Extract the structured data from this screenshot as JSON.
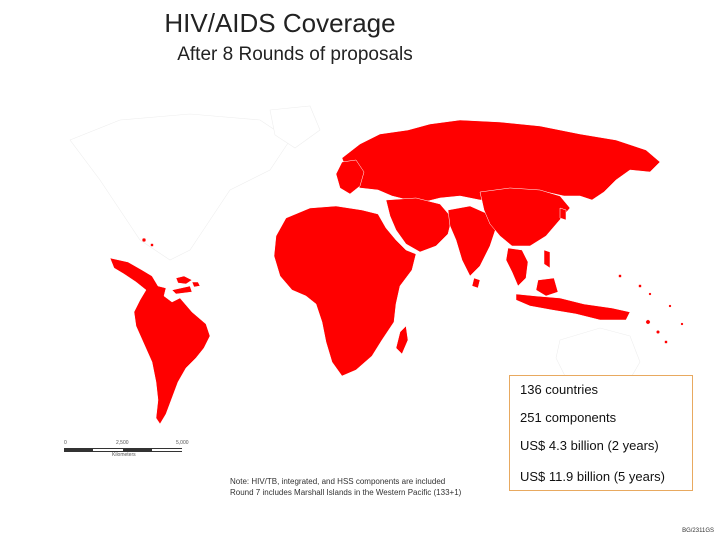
{
  "header": {
    "title": "HIV/AIDS Coverage",
    "subtitle": "After 8 Rounds of proposals"
  },
  "map": {
    "fill_color": "#ff0000",
    "border_color": "#ffffff",
    "background": "#ffffff",
    "funded_regions": [
      "Latin America and Caribbean",
      "Africa",
      "Eastern Europe and Russia",
      "Middle East and Central Asia",
      "South Asia",
      "East and Southeast Asia",
      "Pacific Islands"
    ]
  },
  "scale": {
    "tick0": "0",
    "tick1": "2,500",
    "tick2": "5,000",
    "unit": "Kilometers"
  },
  "notes": {
    "line1": "Note: HIV/TB, integrated, and HSS components are included",
    "line2": "Round 7 includes Marshall Islands in the Western Pacific (133+1)"
  },
  "stats": {
    "border_color": "#e8a960",
    "items": [
      "136 countries",
      "251 components",
      "US$ 4.3 billion (2 years)",
      "US$ 11.9 billion (5 years)"
    ]
  },
  "footer": {
    "code": "BG/2311GS"
  }
}
